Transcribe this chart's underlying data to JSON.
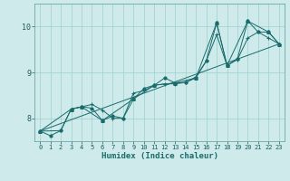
{
  "xlabel": "Humidex (Indice chaleur)",
  "background_color": "#ceeaeb",
  "grid_color": "#9dcfcf",
  "line_color": "#1a6b6b",
  "xlim": [
    -0.5,
    23.5
  ],
  "ylim": [
    7.5,
    10.5
  ],
  "yticks": [
    8,
    9,
    10
  ],
  "xticks": [
    0,
    1,
    2,
    3,
    4,
    5,
    6,
    7,
    8,
    9,
    10,
    11,
    12,
    13,
    14,
    15,
    16,
    17,
    18,
    19,
    20,
    21,
    22,
    23
  ],
  "series1": [
    [
      0,
      7.72
    ],
    [
      1,
      7.62
    ],
    [
      2,
      7.73
    ],
    [
      3,
      8.2
    ],
    [
      4,
      8.25
    ],
    [
      5,
      8.22
    ],
    [
      6,
      7.95
    ],
    [
      7,
      8.05
    ],
    [
      8,
      8.0
    ],
    [
      9,
      8.42
    ],
    [
      10,
      8.65
    ],
    [
      11,
      8.72
    ],
    [
      12,
      8.88
    ],
    [
      13,
      8.77
    ],
    [
      14,
      8.78
    ],
    [
      15,
      8.88
    ],
    [
      16,
      9.25
    ],
    [
      17,
      10.08
    ],
    [
      18,
      9.15
    ],
    [
      19,
      9.3
    ],
    [
      20,
      10.12
    ],
    [
      21,
      9.88
    ],
    [
      22,
      9.88
    ],
    [
      23,
      9.62
    ]
  ],
  "series2": [
    [
      0,
      7.72
    ],
    [
      2,
      7.73
    ],
    [
      3,
      8.2
    ],
    [
      4,
      8.25
    ],
    [
      5,
      8.3
    ],
    [
      6,
      8.18
    ],
    [
      7,
      8.0
    ],
    [
      8,
      8.0
    ],
    [
      9,
      8.55
    ],
    [
      10,
      8.6
    ],
    [
      11,
      8.72
    ],
    [
      12,
      8.75
    ],
    [
      13,
      8.75
    ],
    [
      14,
      8.78
    ],
    [
      15,
      8.9
    ],
    [
      16,
      9.25
    ],
    [
      17,
      9.82
    ],
    [
      18,
      9.15
    ],
    [
      19,
      9.28
    ],
    [
      20,
      9.75
    ],
    [
      21,
      9.88
    ],
    [
      22,
      9.75
    ],
    [
      23,
      9.62
    ]
  ],
  "series3": [
    [
      0,
      7.72
    ],
    [
      23,
      9.62
    ]
  ],
  "series4": [
    [
      0,
      7.72
    ],
    [
      3,
      8.2
    ],
    [
      4,
      8.25
    ],
    [
      6,
      7.95
    ],
    [
      9,
      8.42
    ],
    [
      11,
      8.72
    ],
    [
      13,
      8.77
    ],
    [
      15,
      8.88
    ],
    [
      17,
      10.08
    ],
    [
      18,
      9.15
    ],
    [
      20,
      10.12
    ],
    [
      22,
      9.88
    ],
    [
      23,
      9.62
    ]
  ]
}
